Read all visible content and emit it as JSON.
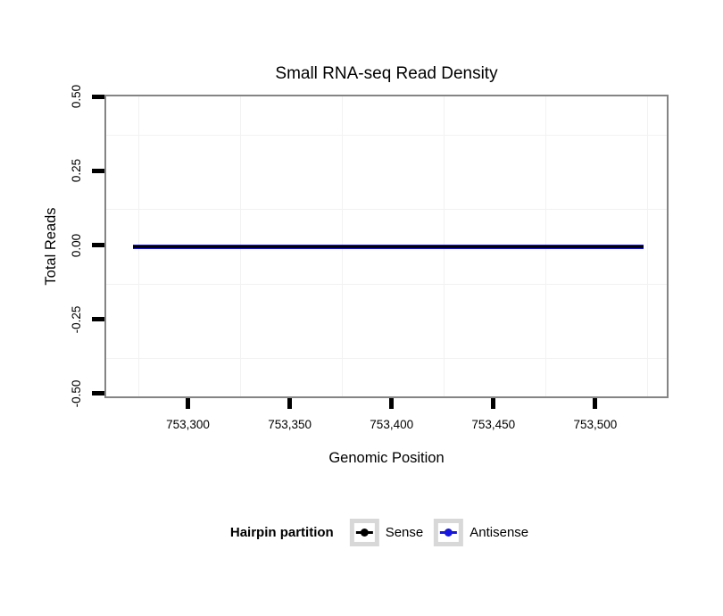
{
  "title": "Small RNA-seq Read Density",
  "chart_data": {
    "type": "line",
    "title": "Small RNA-seq Read Density",
    "xlabel": "Genomic Position",
    "ylabel": "Total Reads",
    "xlim": [
      753259,
      753536
    ],
    "ylim": [
      -0.5155,
      0.5065
    ],
    "x_ticks": [
      753300,
      753350,
      753400,
      753450,
      753500
    ],
    "x_tick_labels": [
      "753,300",
      "753,350",
      "753,400",
      "753,450",
      "753,500"
    ],
    "y_ticks": [
      0.5,
      0.25,
      0,
      -0.25,
      -0.5
    ],
    "y_tick_labels": [
      "0.50",
      "0.25",
      "0.00",
      "-0.25",
      "-0.50"
    ],
    "x_minor_gridlines": [
      753275,
      753325,
      753375,
      753425,
      753475,
      753525
    ],
    "y_minor_gridlines": [
      0.375,
      0.125,
      -0.125,
      -0.375
    ],
    "grid": "minor-only",
    "legend_position": "bottom",
    "series": [
      {
        "name": "Antisense",
        "color": "#1616e0",
        "x": [
          753272,
          753523
        ],
        "y": [
          0,
          0
        ]
      },
      {
        "name": "Sense",
        "color": "#000000",
        "x": [
          753272,
          753523
        ],
        "y": [
          0,
          0
        ]
      }
    ]
  },
  "legend": {
    "title": "Hairpin partition",
    "items": [
      {
        "label": "Sense",
        "color": "#000000"
      },
      {
        "label": "Antisense",
        "color": "#1616e0"
      }
    ]
  }
}
